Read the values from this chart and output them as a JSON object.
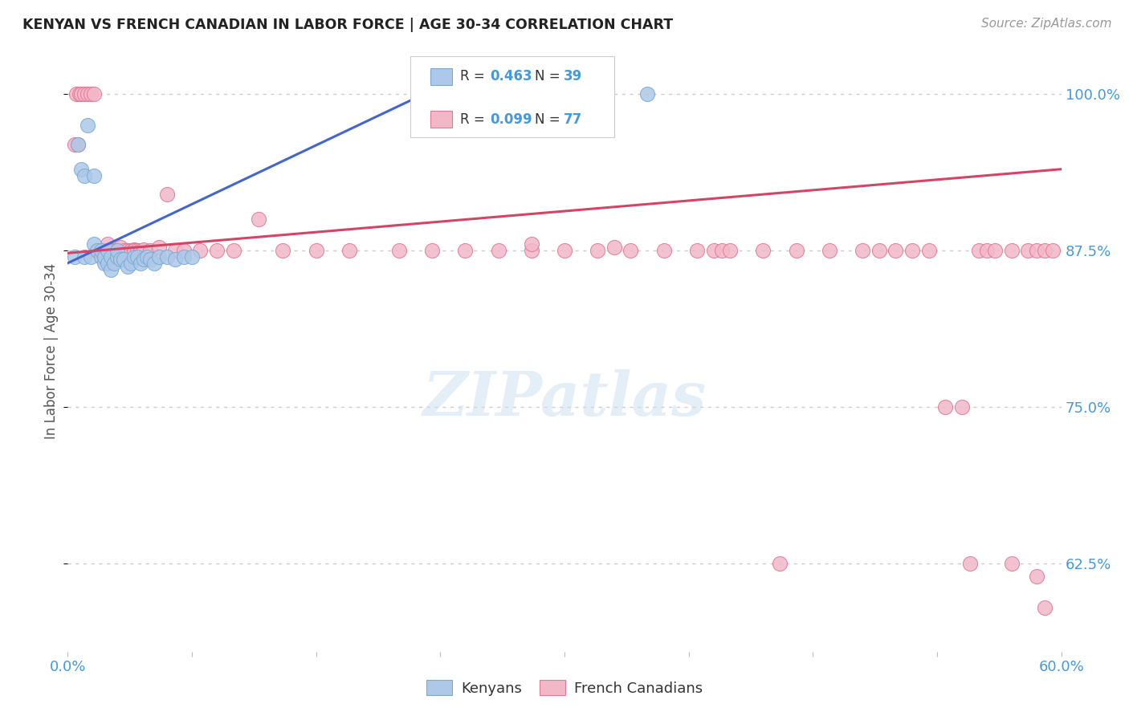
{
  "title": "KENYAN VS FRENCH CANADIAN IN LABOR FORCE | AGE 30-34 CORRELATION CHART",
  "source": "Source: ZipAtlas.com",
  "ylabel": "In Labor Force | Age 30-34",
  "ylabel_ticks": [
    "100.0%",
    "87.5%",
    "75.0%",
    "62.5%"
  ],
  "ylabel_tick_vals": [
    1.0,
    0.875,
    0.75,
    0.625
  ],
  "xlim": [
    0.0,
    0.6
  ],
  "ylim": [
    0.555,
    1.035
  ],
  "kenyan_R": "0.463",
  "kenyan_N": "39",
  "french_R": "0.099",
  "french_N": "77",
  "kenyan_color": "#adc8e8",
  "kenyan_edge": "#7aaad4",
  "french_color": "#f2b8c8",
  "french_edge": "#e07898",
  "kenyan_line_color": "#4466cc",
  "french_line_color": "#d44466",
  "background_color": "#ffffff",
  "grid_color": "#cccccc",
  "watermark": "ZIPatlas",
  "title_color": "#222222",
  "label_color": "#4499dd",
  "kenyan_x": [
    0.004,
    0.006,
    0.008,
    0.01,
    0.01,
    0.012,
    0.014,
    0.016,
    0.016,
    0.018,
    0.02,
    0.02,
    0.022,
    0.022,
    0.024,
    0.024,
    0.026,
    0.026,
    0.028,
    0.03,
    0.03,
    0.032,
    0.034,
    0.036,
    0.038,
    0.04,
    0.042,
    0.044,
    0.046,
    0.048,
    0.05,
    0.052,
    0.055,
    0.06,
    0.065,
    0.07,
    0.075,
    0.22,
    0.35
  ],
  "kenyan_y": [
    0.87,
    0.96,
    0.94,
    0.87,
    0.935,
    0.975,
    0.87,
    0.88,
    0.935,
    0.875,
    0.87,
    0.875,
    0.865,
    0.87,
    0.865,
    0.875,
    0.86,
    0.87,
    0.865,
    0.87,
    0.875,
    0.868,
    0.868,
    0.862,
    0.865,
    0.87,
    0.87,
    0.865,
    0.868,
    0.87,
    0.868,
    0.865,
    0.87,
    0.87,
    0.868,
    0.87,
    0.87,
    1.0,
    1.0
  ],
  "french_x": [
    0.004,
    0.005,
    0.006,
    0.007,
    0.008,
    0.01,
    0.012,
    0.014,
    0.016,
    0.018,
    0.02,
    0.022,
    0.024,
    0.026,
    0.028,
    0.03,
    0.03,
    0.032,
    0.034,
    0.036,
    0.038,
    0.038,
    0.04,
    0.04,
    0.042,
    0.044,
    0.046,
    0.05,
    0.055,
    0.06,
    0.065,
    0.07,
    0.08,
    0.09,
    0.1,
    0.115,
    0.13,
    0.15,
    0.17,
    0.2,
    0.22,
    0.24,
    0.26,
    0.28,
    0.3,
    0.32,
    0.34,
    0.36,
    0.38,
    0.39,
    0.395,
    0.4,
    0.42,
    0.44,
    0.46,
    0.48,
    0.49,
    0.5,
    0.51,
    0.52,
    0.53,
    0.54,
    0.55,
    0.555,
    0.56,
    0.57,
    0.58,
    0.585,
    0.59,
    0.595,
    0.28,
    0.33,
    0.57,
    0.43,
    0.585,
    0.59,
    0.545
  ],
  "french_y": [
    0.96,
    1.0,
    0.96,
    1.0,
    1.0,
    1.0,
    1.0,
    1.0,
    1.0,
    0.875,
    0.875,
    0.875,
    0.88,
    0.875,
    0.875,
    0.875,
    0.875,
    0.878,
    0.875,
    0.875,
    0.875,
    0.875,
    0.876,
    0.875,
    0.875,
    0.875,
    0.876,
    0.875,
    0.878,
    0.92,
    0.875,
    0.875,
    0.875,
    0.875,
    0.875,
    0.9,
    0.875,
    0.875,
    0.875,
    0.875,
    0.875,
    0.875,
    0.875,
    0.875,
    0.875,
    0.875,
    0.875,
    0.875,
    0.875,
    0.875,
    0.875,
    0.875,
    0.875,
    0.875,
    0.875,
    0.875,
    0.875,
    0.875,
    0.875,
    0.875,
    0.75,
    0.75,
    0.875,
    0.875,
    0.875,
    0.875,
    0.875,
    0.875,
    0.875,
    0.875,
    0.88,
    0.878,
    0.625,
    0.625,
    0.615,
    0.59,
    0.625
  ],
  "kenyan_line_x0": 0.0,
  "kenyan_line_y0": 0.865,
  "kenyan_line_x1": 0.22,
  "kenyan_line_y1": 1.003,
  "french_line_x0": 0.0,
  "french_line_y0": 0.873,
  "french_line_x1": 0.6,
  "french_line_y1": 0.94
}
